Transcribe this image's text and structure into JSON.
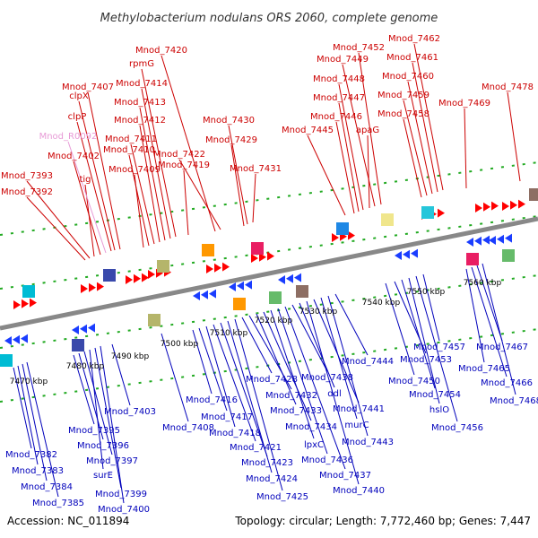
{
  "title": "Methylobacterium nodulans ORS 2060, complete genome",
  "footer": {
    "accession": "Accession: NC_011894",
    "topology": "Topology: circular; Length: 7,772,460 bp; Genes: 7,447"
  },
  "colors": {
    "forward_label": "#cc0000",
    "reverse_label": "#0000bb",
    "rna_label": "#e79ad6",
    "forward_gene": "#ff0000",
    "reverse_gene": "#1a3dff",
    "backbone": "#888888",
    "tick": "#22aa22"
  },
  "scale_labels": [
    "7470 kbp",
    "7480 kbp",
    "7490 kbp",
    "7500 kbp",
    "7510 kbp",
    "7520 kbp",
    "7530 kbp",
    "7540 kbp",
    "7550 kbp",
    "7560 kbp"
  ],
  "forward_genes": [
    "Mnod_7392",
    "Mnod_7393",
    "tig",
    "Mnod_7402",
    "Mnod_R0092",
    "clpP",
    "clpX",
    "Mnod_7407",
    "Mnod_7409",
    "Mnod_7410",
    "Mnod_7411",
    "Mnod_7412",
    "Mnod_7413",
    "Mnod_7414",
    "rpmG",
    "Mnod_7419",
    "Mnod_7420",
    "Mnod_7422",
    "Mnod_7429",
    "Mnod_7430",
    "Mnod_7431",
    "Mnod_7445",
    "Mnod_7446",
    "Mnod_7447",
    "Mnod_7448",
    "apaG",
    "Mnod_7449",
    "Mnod_7452",
    "Mnod_7458",
    "Mnod_7459",
    "Mnod_7460",
    "Mnod_7461",
    "Mnod_7462",
    "Mnod_7469",
    "Mnod_7478"
  ],
  "reverse_genes": [
    "Mnod_7382",
    "Mnod_7383",
    "Mnod_7384",
    "Mnod_7385",
    "Mnod_7395",
    "Mnod_7396",
    "Mnod_7397",
    "surE",
    "Mnod_7399",
    "Mnod_7400",
    "Mnod_7403",
    "Mnod_7408",
    "Mnod_7416",
    "Mnod_7417",
    "Mnod_7418",
    "Mnod_7421",
    "Mnod_7423",
    "Mnod_7424",
    "Mnod_7425",
    "Mnod_7428",
    "Mnod_7432",
    "Mnod_7433",
    "Mnod_7434",
    "lpxC",
    "Mnod_7436",
    "Mnod_7437",
    "Mnod_7438",
    "ddl",
    "Mnod_7440",
    "Mnod_7441",
    "murC",
    "Mnod_7443",
    "Mnod_7444",
    "Mnod_7450",
    "Mnod_7453",
    "Mnod_7454",
    "hslO",
    "Mnod_7456",
    "Mnod_7457",
    "Mnod_7465",
    "Mnod_7466",
    "Mnod_7467",
    "Mnod_7468"
  ]
}
